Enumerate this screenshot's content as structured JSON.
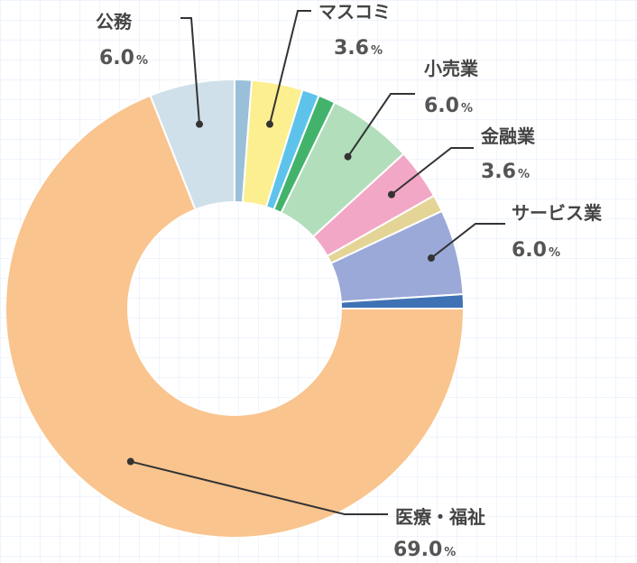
{
  "chart_data": {
    "type": "pie",
    "categories": [
      "医療・福祉",
      "公務",
      "",
      "マスコミ",
      "",
      "",
      "小売業",
      "金融業",
      "",
      "サービス業",
      ""
    ],
    "values": [
      69.0,
      6.0,
      1.2,
      3.6,
      1.2,
      1.2,
      6.0,
      3.6,
      1.2,
      6.0,
      1.0
    ],
    "colors": [
      "#F9C48E",
      "#D0E0EA",
      "#9ABFD9",
      "#FBEF8F",
      "#5EC3EB",
      "#43B36C",
      "#B2DEBB",
      "#F3A7C7",
      "#E4D596",
      "#9BA9D9",
      "#3F72B5"
    ],
    "labels": [
      {
        "name": "医療・福祉",
        "value": "69.0",
        "unit": "%"
      },
      {
        "name": "公務",
        "value": "6.0",
        "unit": "%"
      },
      {
        "name": "マスコミ",
        "value": "3.6",
        "unit": "%"
      },
      {
        "name": "小売業",
        "value": "6.0",
        "unit": "%"
      },
      {
        "name": "金融業",
        "value": "3.6",
        "unit": "%"
      },
      {
        "name": "サービス業",
        "value": "6.0",
        "unit": "%"
      }
    ],
    "donut": true
  }
}
